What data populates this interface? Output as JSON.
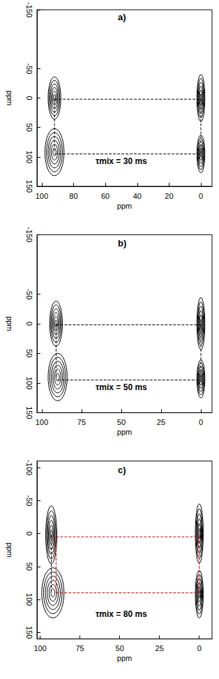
{
  "chart_data": [
    {
      "type": "contour",
      "title": "a)",
      "annotation": "τmix = 30 ms",
      "x_label": "ppm",
      "y_label": "ppm",
      "xlim": [
        -7,
        103
      ],
      "xticks": [
        100,
        80,
        60,
        40,
        20,
        0
      ],
      "ylim": [
        -150,
        150
      ],
      "yticks": [
        -150,
        -50,
        0,
        50,
        100,
        150
      ],
      "color": "#000000",
      "peaks": [
        {
          "x": 92,
          "y": 0,
          "x_width": 4,
          "y_width": 36
        },
        {
          "x": 92,
          "y": 92,
          "x_width": 6,
          "y_width": 40
        },
        {
          "x": 0,
          "y": 0,
          "x_width": 2.5,
          "y_width": 40
        },
        {
          "x": 0,
          "y": 95,
          "x_width": 2.5,
          "y_width": 32
        }
      ],
      "lines": [
        {
          "x": [
            92,
            0
          ],
          "y": [
            2,
            2
          ],
          "color": "#000000"
        },
        {
          "x": [
            92,
            0
          ],
          "y": [
            95,
            95
          ],
          "color": "#000000"
        },
        {
          "x": [
            92,
            92
          ],
          "y": [
            0,
            92
          ],
          "color": "#000000"
        },
        {
          "x": [
            0,
            0
          ],
          "y": [
            0,
            95
          ],
          "color": "#000000"
        }
      ]
    },
    {
      "type": "contour",
      "title": "b)",
      "annotation": "τmix = 50 ms",
      "x_label": "ppm",
      "y_label": "ppm",
      "xlim": [
        -7,
        103
      ],
      "xticks": [
        100,
        75,
        50,
        25,
        0
      ],
      "ylim": [
        -150,
        150
      ],
      "yticks": [
        -150,
        -50,
        0,
        50,
        100,
        150
      ],
      "color": "#000000",
      "peaks": [
        {
          "x": 91,
          "y": 0,
          "x_width": 4,
          "y_width": 38
        },
        {
          "x": 90,
          "y": 90,
          "x_width": 6,
          "y_width": 40
        },
        {
          "x": 0,
          "y": 0,
          "x_width": 2.5,
          "y_width": 44
        },
        {
          "x": 0,
          "y": 93,
          "x_width": 2.5,
          "y_width": 32
        }
      ],
      "lines": [
        {
          "x": [
            91,
            0
          ],
          "y": [
            2,
            2
          ],
          "color": "#000000"
        },
        {
          "x": [
            90,
            0
          ],
          "y": [
            95,
            95
          ],
          "color": "#000000"
        },
        {
          "x": [
            91,
            91
          ],
          "y": [
            0,
            90
          ],
          "color": "#000000"
        },
        {
          "x": [
            0,
            0
          ],
          "y": [
            0,
            93
          ],
          "color": "#000000"
        }
      ]
    },
    {
      "type": "contour",
      "title": "c)",
      "annotation": "τmix = 80 ms",
      "x_label": "ppm",
      "y_label": "ppm",
      "xlim": [
        -8,
        102
      ],
      "xticks": [
        100,
        75,
        50,
        25,
        0
      ],
      "ylim": [
        -110,
        160
      ],
      "yticks": [
        -100,
        -50,
        0,
        50,
        100,
        150
      ],
      "color": "#000000",
      "peaks": [
        {
          "x": 93,
          "y": 2,
          "x_width": 3.5,
          "y_width": 44
        },
        {
          "x": 92,
          "y": 90,
          "x_width": 7,
          "y_width": 38
        },
        {
          "x": 0,
          "y": 0,
          "x_width": 2.5,
          "y_width": 45
        },
        {
          "x": 0,
          "y": 92,
          "x_width": 2.5,
          "y_width": 36
        }
      ],
      "lines": [
        {
          "x": [
            93,
            93
          ],
          "y": [
            2,
            90
          ],
          "color": "#000000"
        },
        {
          "x": [
            90,
            0
          ],
          "y": [
            5,
            5
          ],
          "color": "#cc0000"
        },
        {
          "x": [
            90,
            0
          ],
          "y": [
            90,
            90
          ],
          "color": "#cc0000"
        },
        {
          "x": [
            90,
            90
          ],
          "y": [
            5,
            90
          ],
          "color": "#cc0000"
        },
        {
          "x": [
            0,
            0
          ],
          "y": [
            5,
            90
          ],
          "color": "#cc0000"
        }
      ]
    }
  ]
}
